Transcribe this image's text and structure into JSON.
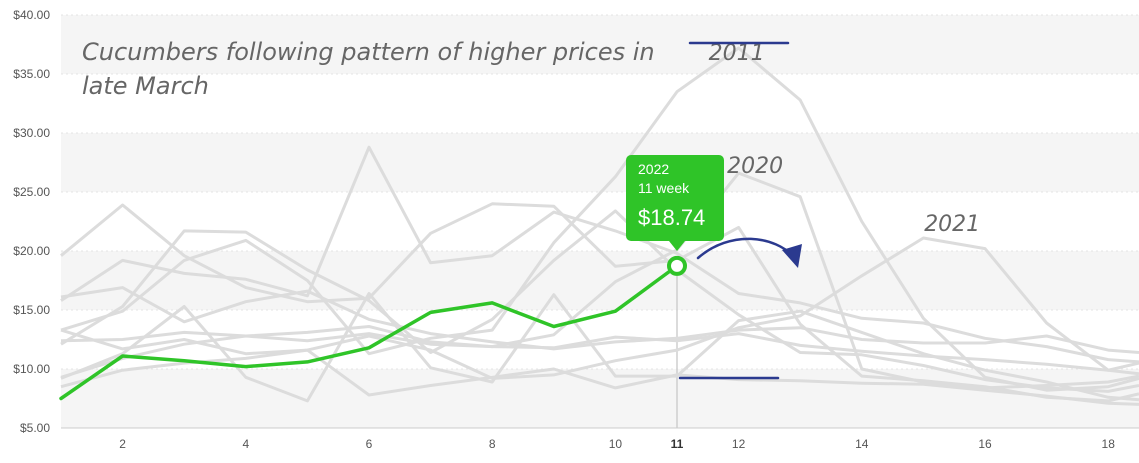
{
  "chart_data": {
    "type": "line",
    "title": "Cucumbers following pattern of higher prices in late March",
    "xlabel": "",
    "ylabel": "",
    "xlim": [
      1,
      18.5
    ],
    "ylim": [
      5,
      40
    ],
    "y_ticks": [
      "$5.00",
      "$10.00",
      "$15.00",
      "$20.00",
      "$25.00",
      "$30.00",
      "$35.00",
      "$40.00"
    ],
    "y_tick_values": [
      5,
      10,
      15,
      20,
      25,
      30,
      35,
      40
    ],
    "x_ticks": [
      "2",
      "4",
      "6",
      "8",
      "10",
      "11",
      "12",
      "14",
      "16",
      "18"
    ],
    "x_tick_values": [
      2,
      4,
      6,
      8,
      10,
      11,
      12,
      14,
      16,
      18
    ],
    "highlight_week": 11,
    "colors": {
      "highlight": "#2fc428",
      "history": "#dcdcdc",
      "annotation": "#2b3a8f",
      "band": "#f5f5f5"
    },
    "annotations": [
      {
        "text": "2011",
        "x": 12,
        "y": 36.2
      },
      {
        "text": "2020",
        "x": 12.3,
        "y": 26.6
      },
      {
        "text": "2021",
        "x": 15.5,
        "y": 21.7
      }
    ],
    "series": [
      {
        "name": "2022",
        "highlight": true,
        "x": [
          1,
          2,
          3,
          4,
          5,
          6,
          7,
          8,
          9,
          10,
          11
        ],
        "values": [
          7.5,
          11.1,
          10.7,
          10.2,
          10.6,
          11.8,
          14.8,
          15.6,
          13.6,
          14.9,
          18.74
        ]
      },
      {
        "name": "2011",
        "x": [
          1,
          2,
          3,
          4,
          5,
          6,
          7,
          8,
          9,
          10,
          11,
          12,
          13,
          14,
          15,
          16,
          17,
          18,
          18.5
        ],
        "values": [
          13.3,
          14.9,
          19.2,
          20.9,
          17.5,
          11.3,
          12.6,
          13.3,
          20.7,
          26.3,
          33.5,
          37.2,
          32.8,
          22.5,
          14.3,
          9.3,
          8.2,
          8.5,
          9.2
        ]
      },
      {
        "name": "2020",
        "x": [
          1,
          2,
          3,
          4,
          5,
          6,
          7,
          8,
          9,
          10,
          11,
          12,
          13,
          14,
          15,
          16,
          17,
          18,
          18.5
        ],
        "values": [
          9.3,
          10.9,
          12.1,
          12.8,
          12.4,
          13.0,
          12.1,
          11.9,
          12.9,
          17.4,
          20.1,
          26.6,
          24.6,
          10.0,
          8.9,
          8.4,
          8.6,
          8.9,
          9.4
        ]
      },
      {
        "name": "2021",
        "x": [
          1,
          2,
          3,
          4,
          5,
          6,
          7,
          8,
          9,
          10,
          11,
          12,
          13,
          14,
          15,
          16,
          17,
          18,
          18.5
        ],
        "values": [
          13.3,
          11.7,
          12.5,
          11.3,
          11.6,
          12.8,
          11.6,
          9.2,
          9.5,
          10.7,
          11.6,
          13.5,
          14.5,
          17.9,
          21.1,
          20.2,
          13.9,
          9.9,
          10.5
        ]
      },
      {
        "x": [
          1,
          2,
          3,
          4,
          5,
          6,
          7,
          8,
          9,
          10,
          11,
          12,
          13,
          14,
          15,
          16,
          17,
          18,
          18.5
        ],
        "values": [
          15.8,
          19.2,
          18.1,
          17.6,
          16.2,
          28.8,
          19.0,
          19.6,
          23.3,
          21.7,
          19.8,
          16.4,
          15.6,
          14.3,
          13.9,
          12.6,
          11.9,
          10.8,
          10.6
        ]
      },
      {
        "x": [
          1,
          2,
          3,
          4,
          5,
          6,
          7,
          8,
          9,
          10,
          11,
          12,
          13,
          14,
          15,
          16,
          17,
          18,
          18.5
        ],
        "values": [
          19.6,
          23.9,
          19.6,
          16.9,
          15.7,
          16.0,
          21.5,
          24.0,
          23.8,
          18.7,
          19.2,
          22.0,
          13.8,
          9.4,
          9.0,
          8.5,
          7.6,
          7.3,
          7.9
        ]
      },
      {
        "x": [
          1,
          2,
          3,
          4,
          5,
          6,
          7,
          8,
          9,
          10,
          11,
          12,
          13,
          14,
          15,
          16,
          17,
          18,
          18.5
        ],
        "values": [
          12.1,
          15.3,
          21.7,
          21.6,
          18.4,
          15.8,
          11.4,
          14.2,
          19.2,
          23.4,
          18.4,
          14.6,
          11.4,
          11.2,
          10.3,
          9.1,
          8.4,
          8.1,
          8.6
        ]
      },
      {
        "x": [
          1,
          2,
          3,
          4,
          5,
          6,
          7,
          8,
          9,
          10,
          11,
          12,
          13,
          14,
          15,
          16,
          17,
          18,
          18.5
        ],
        "values": [
          9.2,
          11.3,
          15.3,
          9.3,
          7.3,
          16.4,
          10.1,
          8.9,
          16.3,
          9.4,
          9.4,
          14.1,
          14.9,
          13.1,
          11.3,
          9.9,
          8.9,
          7.6,
          7.4
        ]
      },
      {
        "x": [
          1,
          2,
          3,
          4,
          5,
          6,
          7,
          8,
          9,
          10,
          11,
          12,
          13,
          14,
          15,
          16,
          17,
          18,
          18.5
        ],
        "values": [
          16.1,
          16.9,
          14.0,
          15.7,
          16.6,
          14.2,
          13.0,
          12.3,
          11.7,
          12.3,
          12.6,
          13.3,
          13.5,
          12.5,
          12.2,
          12.2,
          12.8,
          11.6,
          11.4
        ]
      },
      {
        "x": [
          1,
          2,
          3,
          4,
          5,
          6,
          7,
          8,
          9,
          10,
          11,
          12,
          13,
          14,
          15,
          16,
          17,
          18,
          18.5
        ],
        "values": [
          12.4,
          12.5,
          13.1,
          12.8,
          13.1,
          13.6,
          12.3,
          11.9,
          11.8,
          12.7,
          12.4,
          13.0,
          12.0,
          11.5,
          11.1,
          10.8,
          10.4,
          9.9,
          9.6
        ]
      },
      {
        "x": [
          1,
          2,
          3,
          4,
          5,
          6,
          7,
          8,
          9,
          10,
          11,
          12,
          13,
          14,
          15,
          16,
          17,
          18,
          18.5
        ],
        "values": [
          8.5,
          9.9,
          10.5,
          10.9,
          11.6,
          7.8,
          8.6,
          9.3,
          10.0,
          8.4,
          9.5,
          9.1,
          9.0,
          8.8,
          8.7,
          8.2,
          7.7,
          7.1,
          7.0
        ]
      }
    ],
    "tooltip": {
      "year": "2022",
      "week_label": "11 week",
      "value": "$18.74"
    }
  }
}
